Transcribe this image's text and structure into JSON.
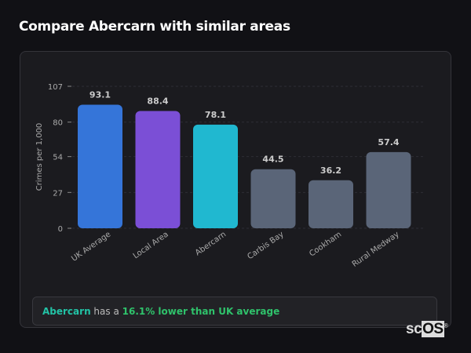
{
  "header": {
    "title": "Compare Abercarn with similar areas"
  },
  "chart_data": {
    "type": "bar",
    "title": "",
    "xlabel": "",
    "ylabel": "Crimes per 1,000",
    "categories": [
      "UK Average",
      "Local Area",
      "Abercarn",
      "Carbis Bay",
      "Cookham",
      "Rural Medway"
    ],
    "values": [
      93.1,
      88.4,
      78.1,
      44.5,
      36.2,
      57.4
    ],
    "value_labels": [
      "93.1",
      "88.4",
      "78.1",
      "44.5",
      "36.2",
      "57.4"
    ],
    "colors": [
      "#3575d9",
      "#7b4fd6",
      "#20b8d0",
      "#5a6578",
      "#5a6578",
      "#5a6578"
    ],
    "yticks": [
      "0",
      "27",
      "54",
      "80",
      "107"
    ],
    "ytick_values": [
      0,
      27,
      54,
      80,
      107
    ],
    "ylim": [
      0,
      107
    ],
    "grid": true
  },
  "summary": {
    "area": "Abercarn",
    "middle": " has a ",
    "comparison": "16.1% lower than UK average"
  },
  "watermark": {
    "prefix": "sc",
    "boxed": "OS",
    "mark": "®"
  }
}
